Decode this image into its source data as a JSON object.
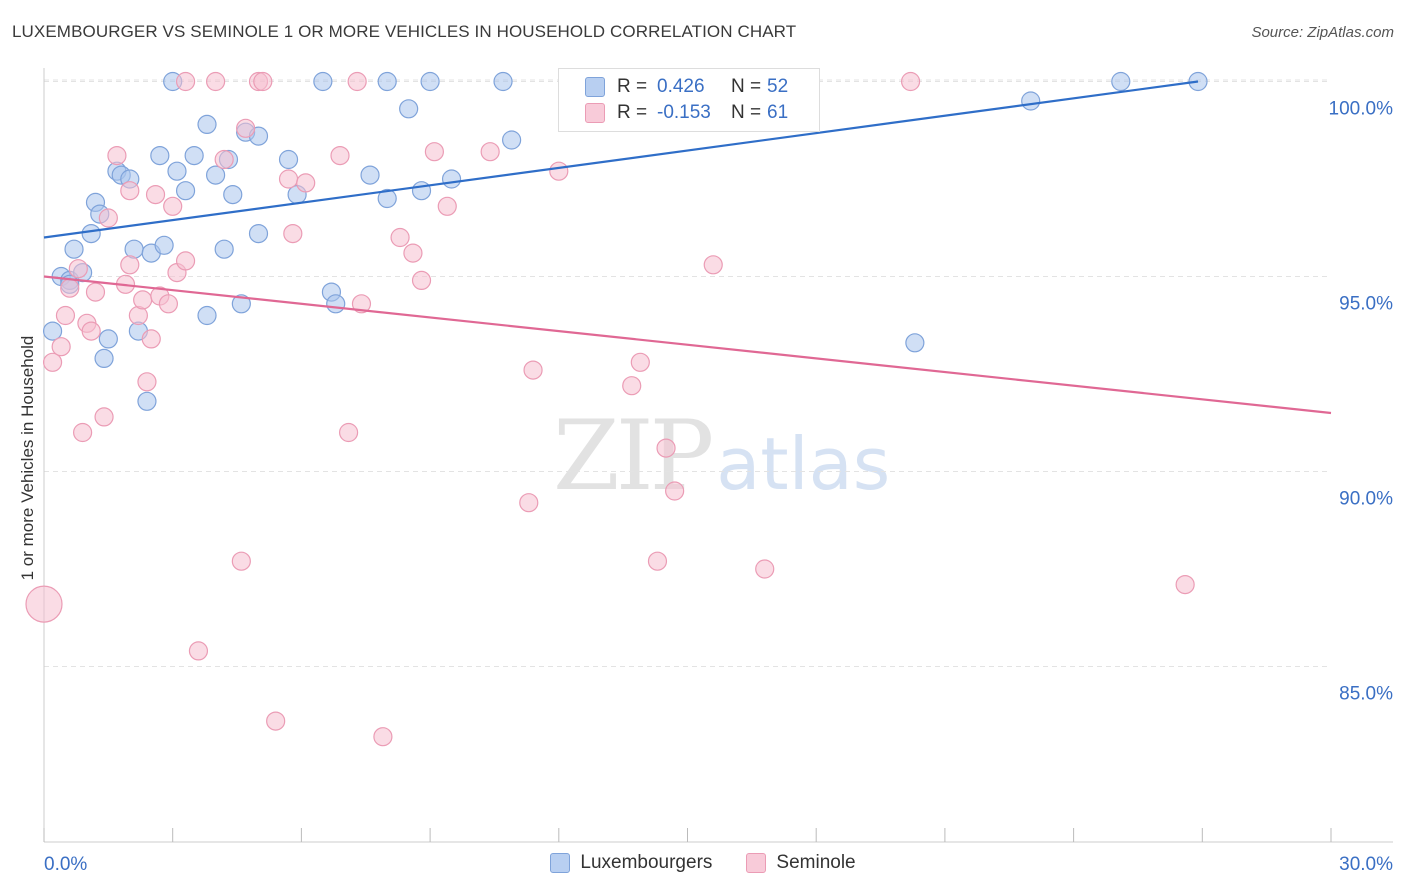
{
  "title": "LUXEMBOURGER VS SEMINOLE 1 OR MORE VEHICLES IN HOUSEHOLD CORRELATION CHART",
  "source": "Source: ZipAtlas.com",
  "watermark": {
    "zip": "ZIP",
    "atlas": "atlas"
  },
  "legend": {
    "r_label": "R =",
    "n_label": "N =",
    "rows": [
      {
        "r": "0.426",
        "n": "52"
      },
      {
        "r": "-0.153",
        "n": "61"
      }
    ]
  },
  "colors": {
    "blue_fill": "#a9c4ec",
    "blue_stroke": "#7fa3da",
    "blue_line": "#2f6ec8",
    "pink_fill": "#f6bfd0",
    "pink_stroke": "#eb9cb5",
    "pink_line": "#e06894",
    "tick_label": "#3a6fc4",
    "grid": "#e3e3e3"
  },
  "chart_data": {
    "type": "scatter",
    "title": "LUXEMBOURGER VS SEMINOLE 1 OR MORE VEHICLES IN HOUSEHOLD CORRELATION CHART",
    "xlabel": "",
    "ylabel": "1 or more Vehicles in Household",
    "xlim": [
      0,
      30
    ],
    "ylim": [
      80.5,
      100.5
    ],
    "x_tick_labels": [
      "0.0%",
      "30.0%"
    ],
    "y_ticks": [
      85,
      90,
      95,
      100
    ],
    "y_tick_labels": [
      "85.0%",
      "90.0%",
      "95.0%",
      "100.0%"
    ],
    "grid": true,
    "legend_position": "bottom",
    "series": [
      {
        "name": "Luxembourgers",
        "color": "#a9c4ec",
        "trend": {
          "x0": 0,
          "y0": 96.0,
          "x1": 26.9,
          "y1": 100.0
        },
        "points": [
          [
            0.2,
            93.6
          ],
          [
            0.4,
            95.0
          ],
          [
            0.6,
            94.9
          ],
          [
            0.7,
            95.7
          ],
          [
            0.9,
            95.1
          ],
          [
            1.1,
            96.1
          ],
          [
            1.2,
            96.9
          ],
          [
            1.3,
            96.6
          ],
          [
            1.4,
            92.9
          ],
          [
            1.5,
            93.4
          ],
          [
            1.7,
            97.7
          ],
          [
            1.8,
            97.6
          ],
          [
            2.0,
            97.5
          ],
          [
            2.1,
            95.7
          ],
          [
            2.2,
            93.6
          ],
          [
            2.4,
            91.8
          ],
          [
            2.5,
            95.6
          ],
          [
            2.7,
            98.1
          ],
          [
            2.8,
            95.8
          ],
          [
            3.0,
            100.0
          ],
          [
            3.1,
            97.7
          ],
          [
            3.3,
            97.2
          ],
          [
            3.5,
            98.1
          ],
          [
            3.8,
            98.9
          ],
          [
            3.8,
            94.0
          ],
          [
            4.0,
            97.6
          ],
          [
            4.2,
            95.7
          ],
          [
            4.3,
            98.0
          ],
          [
            4.4,
            97.1
          ],
          [
            4.6,
            94.3
          ],
          [
            4.7,
            98.7
          ],
          [
            5.0,
            98.6
          ],
          [
            5.0,
            96.1
          ],
          [
            5.7,
            98.0
          ],
          [
            5.9,
            97.1
          ],
          [
            6.5,
            100.0
          ],
          [
            6.7,
            94.6
          ],
          [
            6.8,
            94.3
          ],
          [
            7.6,
            97.6
          ],
          [
            8.0,
            97.0
          ],
          [
            8.0,
            100.0
          ],
          [
            8.5,
            99.3
          ],
          [
            8.8,
            97.2
          ],
          [
            9.0,
            100.0
          ],
          [
            9.5,
            97.5
          ],
          [
            10.7,
            100.0
          ],
          [
            10.9,
            98.5
          ],
          [
            20.3,
            93.3
          ],
          [
            23.0,
            99.5
          ],
          [
            25.1,
            100.0
          ],
          [
            26.9,
            100.0
          ],
          [
            0.6,
            94.8
          ]
        ]
      },
      {
        "name": "Seminole",
        "color": "#f6bfd0",
        "trend": {
          "x0": 0,
          "y0": 95.0,
          "x1": 30,
          "y1": 91.5
        },
        "points": [
          [
            0.0,
            86.6
          ],
          [
            0.2,
            92.8
          ],
          [
            0.4,
            93.2
          ],
          [
            0.5,
            94.0
          ],
          [
            0.6,
            94.7
          ],
          [
            0.8,
            95.2
          ],
          [
            0.9,
            91.0
          ],
          [
            1.0,
            93.8
          ],
          [
            1.1,
            93.6
          ],
          [
            1.4,
            91.4
          ],
          [
            1.5,
            96.5
          ],
          [
            1.7,
            98.1
          ],
          [
            1.9,
            94.8
          ],
          [
            2.0,
            97.2
          ],
          [
            2.0,
            95.3
          ],
          [
            2.2,
            94.0
          ],
          [
            2.3,
            94.4
          ],
          [
            2.4,
            92.3
          ],
          [
            2.5,
            93.4
          ],
          [
            2.6,
            97.1
          ],
          [
            2.7,
            94.5
          ],
          [
            2.9,
            94.3
          ],
          [
            3.0,
            96.8
          ],
          [
            3.1,
            95.1
          ],
          [
            3.3,
            95.4
          ],
          [
            3.3,
            100.0
          ],
          [
            3.6,
            85.4
          ],
          [
            4.0,
            100.0
          ],
          [
            4.2,
            98.0
          ],
          [
            4.6,
            87.7
          ],
          [
            4.7,
            98.8
          ],
          [
            5.0,
            100.0
          ],
          [
            5.1,
            100.0
          ],
          [
            5.4,
            83.6
          ],
          [
            5.7,
            97.5
          ],
          [
            5.8,
            96.1
          ],
          [
            6.1,
            97.4
          ],
          [
            6.9,
            98.1
          ],
          [
            7.1,
            91.0
          ],
          [
            7.3,
            100.0
          ],
          [
            7.4,
            94.3
          ],
          [
            7.9,
            83.2
          ],
          [
            8.3,
            96.0
          ],
          [
            8.6,
            95.6
          ],
          [
            8.8,
            94.9
          ],
          [
            9.1,
            98.2
          ],
          [
            9.4,
            96.8
          ],
          [
            10.4,
            98.2
          ],
          [
            11.3,
            89.2
          ],
          [
            11.4,
            92.6
          ],
          [
            12.0,
            97.7
          ],
          [
            13.7,
            92.2
          ],
          [
            13.9,
            92.8
          ],
          [
            14.3,
            87.7
          ],
          [
            14.5,
            90.6
          ],
          [
            14.7,
            89.5
          ],
          [
            15.6,
            95.3
          ],
          [
            16.8,
            87.5
          ],
          [
            20.2,
            100.0
          ],
          [
            26.6,
            87.1
          ],
          [
            1.2,
            94.6
          ]
        ]
      }
    ]
  }
}
